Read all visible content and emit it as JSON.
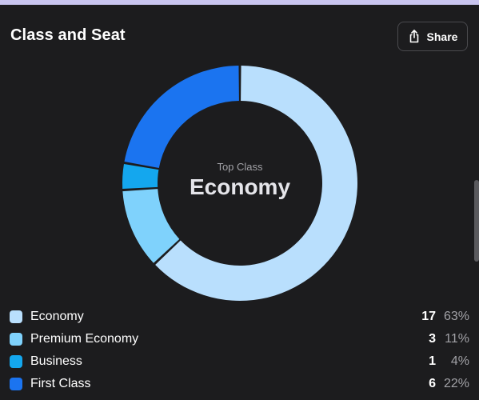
{
  "card": {
    "title": "Class and Seat",
    "share_label": "Share"
  },
  "center": {
    "label": "Top Class",
    "value": "Economy"
  },
  "colors": {
    "background": "#1c1c1e",
    "economy": "#b9dffd",
    "premium_economy": "#7fd2fc",
    "business": "#14a7ee",
    "first_class": "#1b74f0"
  },
  "icons": {
    "share": "share-icon"
  },
  "chart_data": {
    "type": "pie",
    "categories": [
      "Economy",
      "Premium Economy",
      "Business",
      "First Class"
    ],
    "values": [
      17,
      3,
      1,
      6
    ],
    "percent_labels": [
      "63%",
      "11%",
      "4%",
      "22%"
    ],
    "colors": [
      "#b9dffd",
      "#7fd2fc",
      "#14a7ee",
      "#1b74f0"
    ],
    "donut": true,
    "legend_placement": "bottom"
  },
  "legend": [
    {
      "name": "Economy",
      "count": "17",
      "pct": "63%",
      "color": "#b9dffd"
    },
    {
      "name": "Premium Economy",
      "count": "3",
      "pct": "11%",
      "color": "#7fd2fc"
    },
    {
      "name": "Business",
      "count": "1",
      "pct": "4%",
      "color": "#14a7ee"
    },
    {
      "name": "First Class",
      "count": "6",
      "pct": "22%",
      "color": "#1b74f0"
    }
  ]
}
